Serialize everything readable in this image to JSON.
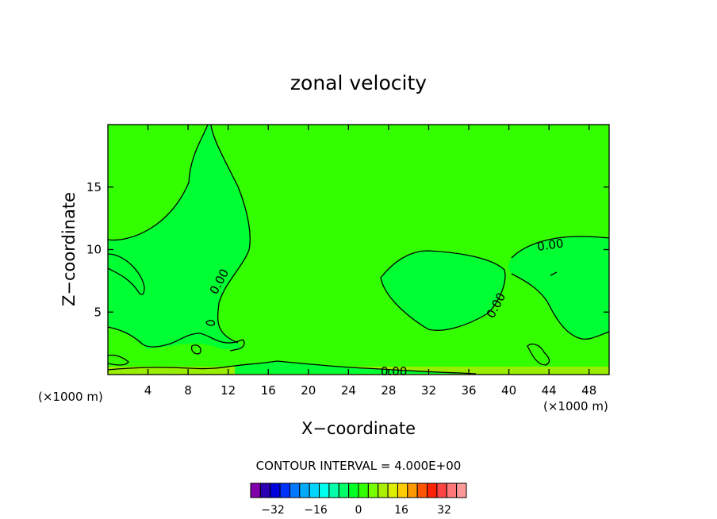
{
  "chart_data": {
    "type": "heatmap",
    "title": "zonal velocity",
    "xlabel": "X−coordinate",
    "ylabel": "Z−coordinate",
    "x_unit": "(×1000 m)",
    "y_unit": "(×1000 m)",
    "xlim": [
      0,
      50
    ],
    "ylim": [
      0,
      20
    ],
    "x_ticks": [
      4,
      8,
      12,
      16,
      20,
      24,
      28,
      32,
      36,
      40,
      44,
      48
    ],
    "x_tick_labels": [
      "4",
      "8",
      "12",
      "16",
      "20",
      "24",
      "28",
      "32",
      "36",
      "40",
      "44",
      "48"
    ],
    "y_ticks": [
      5,
      10,
      15
    ],
    "y_tick_labels": [
      "5",
      "10",
      "15"
    ],
    "contour_interval_label": "CONTOUR INTERVAL = 4.000E+00",
    "contour_labels": [
      "0.00",
      "0.00",
      "0.00",
      "0.00"
    ],
    "background_color": "#33ff00",
    "negative_region_color": "#00ff33",
    "near_surface_color": "#99ee00",
    "colorbar": {
      "colors": [
        "#8000aa",
        "#2a00b0",
        "#0000dd",
        "#0033ff",
        "#0077ff",
        "#00aaff",
        "#00d5ff",
        "#00ffee",
        "#00ffaa",
        "#00ff66",
        "#00ff22",
        "#33ff00",
        "#77ff00",
        "#aaee00",
        "#ddee00",
        "#ffcc00",
        "#ff9900",
        "#ff5500",
        "#ff2200",
        "#ff4444",
        "#ff7777",
        "#ff9999"
      ],
      "tick_labels": [
        "−32",
        "−16",
        "0",
        "16",
        "32"
      ]
    }
  }
}
